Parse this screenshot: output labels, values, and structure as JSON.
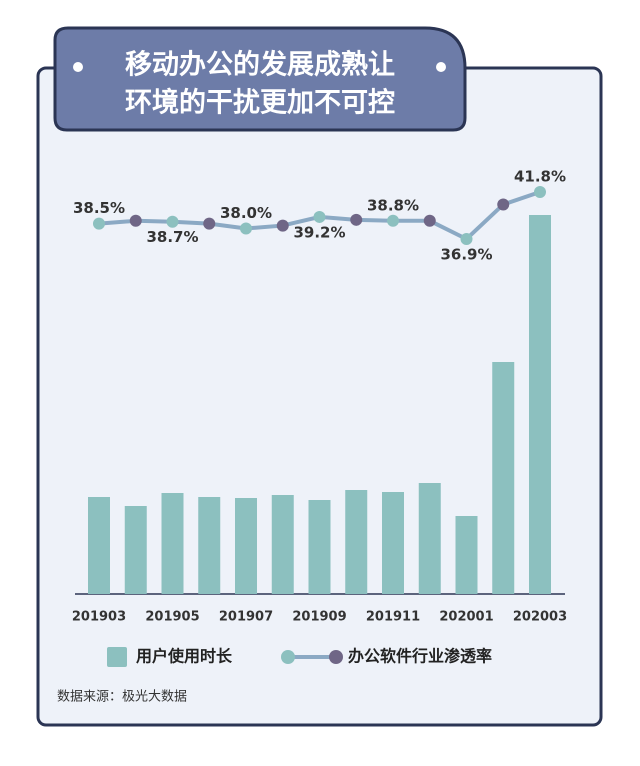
{
  "chart_data": {
    "type": "bar-line",
    "title_lines": [
      "移动办公的发展成熟让",
      "环境的干扰更加不可控"
    ],
    "categories": [
      "201903",
      null,
      "201905",
      null,
      "201907",
      null,
      "201909",
      null,
      "201911",
      null,
      "202001",
      null,
      "202003"
    ],
    "series": [
      {
        "name": "用户使用时长",
        "type": "bar",
        "color": "#8cc0bf",
        "values": [
          97,
          88,
          101,
          97,
          96,
          99,
          94,
          104,
          102,
          111,
          78,
          232,
          379
        ]
      },
      {
        "name": "办公软件行业渗透率",
        "type": "line",
        "color": "#8ba9c4",
        "marker_colors": [
          "#8cc0bf",
          "#6f6686"
        ],
        "values": [
          38.5,
          38.8,
          38.7,
          38.5,
          38.0,
          38.3,
          39.2,
          38.9,
          38.8,
          38.8,
          36.9,
          40.5,
          41.8
        ],
        "value_labels": [
          "38.5%",
          null,
          "38.7%",
          null,
          "38.0%",
          null,
          "39.2%",
          null,
          "38.8%",
          null,
          "36.9%",
          null,
          "41.8%"
        ]
      }
    ],
    "source": "数据来源：极光大数据"
  }
}
